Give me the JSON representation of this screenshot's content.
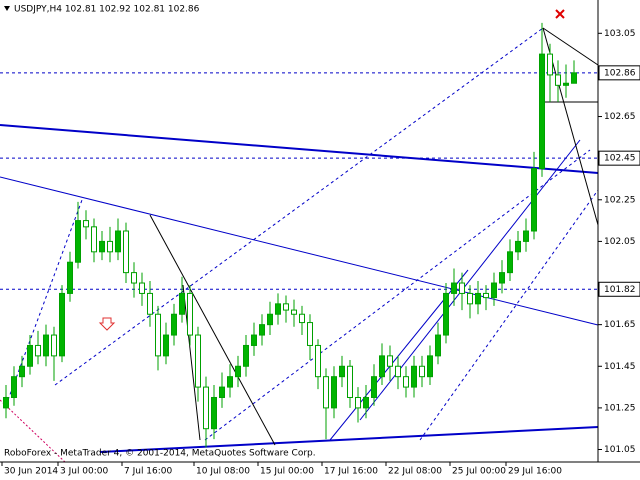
{
  "chart_data": {
    "type": "candlestick",
    "header": "USDJPY,H4  102.81 102.92 102.81 102.86",
    "footer": "RoboForex - MetaTrader 4, © 2001-2014, MetaQuotes Software Corp.",
    "categories": [
      "30 Jun 2014",
      null,
      null,
      null,
      null,
      null,
      null,
      "3 Jul 00:00",
      null,
      null,
      null,
      null,
      null,
      null,
      null,
      "7 Jul 16:00",
      null,
      null,
      null,
      null,
      null,
      null,
      null,
      null,
      "10 Jul 08:00",
      null,
      null,
      null,
      null,
      null,
      null,
      null,
      "15 Jul 00:00",
      null,
      null,
      null,
      null,
      null,
      null,
      null,
      "17 Jul 16:00",
      null,
      null,
      null,
      null,
      null,
      null,
      null,
      "22 Jul 08:00",
      null,
      null,
      null,
      null,
      null,
      null,
      null,
      "25 Jul 00:00",
      null,
      null,
      null,
      null,
      null,
      null,
      "29 Jul 16:00",
      null,
      null,
      null,
      null,
      null,
      null,
      null,
      null
    ],
    "open": [
      101.25,
      101.3,
      101.4,
      101.45,
      101.55,
      101.5,
      101.6,
      101.5,
      101.8,
      101.95,
      102.15,
      102.12,
      102.0,
      102.05,
      102.0,
      102.1,
      101.9,
      101.85,
      101.8,
      101.7,
      101.5,
      101.6,
      101.7,
      101.8,
      101.6,
      101.35,
      101.15,
      101.3,
      101.35,
      101.4,
      101.45,
      101.55,
      101.6,
      101.65,
      101.7,
      101.75,
      101.72,
      101.7,
      101.66,
      101.55,
      101.4,
      101.25,
      101.4,
      101.45,
      101.3,
      101.25,
      101.3,
      101.4,
      101.5,
      101.45,
      101.4,
      101.35,
      101.45,
      101.4,
      101.5,
      101.6,
      101.8,
      101.85,
      101.8,
      101.75,
      101.8,
      101.78,
      101.85,
      101.9,
      102.0,
      102.05,
      102.1,
      102.4,
      102.95,
      102.85,
      102.8,
      102.81
    ],
    "high": [
      101.36,
      101.45,
      101.5,
      101.6,
      101.62,
      101.65,
      101.64,
      101.84,
      102.0,
      102.24,
      102.2,
      102.16,
      102.1,
      102.12,
      102.16,
      102.14,
      101.95,
      101.9,
      101.86,
      101.74,
      101.66,
      101.75,
      101.88,
      101.84,
      101.64,
      101.4,
      101.36,
      101.42,
      101.46,
      101.5,
      101.6,
      101.66,
      101.7,
      101.76,
      101.8,
      101.79,
      101.77,
      101.74,
      101.7,
      101.58,
      101.44,
      101.45,
      101.5,
      101.48,
      101.35,
      101.36,
      101.46,
      101.56,
      101.55,
      101.5,
      101.45,
      101.5,
      101.5,
      101.55,
      101.66,
      101.85,
      101.92,
      101.9,
      101.84,
      101.86,
      101.84,
      101.9,
      101.96,
      102.06,
      102.1,
      102.16,
      102.48,
      103.1,
      103.0,
      102.92,
      102.9,
      102.92
    ],
    "low": [
      101.2,
      101.26,
      101.35,
      101.41,
      101.46,
      101.45,
      101.38,
      101.47,
      101.76,
      101.92,
      102.06,
      101.95,
      101.96,
      101.95,
      101.96,
      101.85,
      101.78,
      101.74,
      101.64,
      101.43,
      101.46,
      101.55,
      101.66,
      101.55,
      101.28,
      101.06,
      101.1,
      101.25,
      101.3,
      101.35,
      101.4,
      101.5,
      101.55,
      101.6,
      101.65,
      101.66,
      101.64,
      101.6,
      101.48,
      101.34,
      101.1,
      101.2,
      101.35,
      101.25,
      101.18,
      101.2,
      101.26,
      101.36,
      101.38,
      101.34,
      101.3,
      101.3,
      101.35,
      101.36,
      101.46,
      101.56,
      101.74,
      101.72,
      101.68,
      101.7,
      101.72,
      101.74,
      101.8,
      101.86,
      101.96,
      102.0,
      102.06,
      102.36,
      102.72,
      102.72,
      102.74,
      102.81
    ],
    "close": [
      101.3,
      101.4,
      101.45,
      101.55,
      101.5,
      101.6,
      101.5,
      101.8,
      101.95,
      102.15,
      102.12,
      102.0,
      102.05,
      102.0,
      102.1,
      101.9,
      101.85,
      101.8,
      101.7,
      101.5,
      101.6,
      101.7,
      101.8,
      101.6,
      101.35,
      101.15,
      101.3,
      101.35,
      101.4,
      101.45,
      101.55,
      101.6,
      101.65,
      101.7,
      101.75,
      101.72,
      101.7,
      101.66,
      101.55,
      101.4,
      101.25,
      101.4,
      101.45,
      101.3,
      101.25,
      101.3,
      101.4,
      101.5,
      101.45,
      101.4,
      101.35,
      101.45,
      101.4,
      101.5,
      101.6,
      101.8,
      101.85,
      101.8,
      101.75,
      101.8,
      101.78,
      101.85,
      101.9,
      102.0,
      102.05,
      102.1,
      102.4,
      102.95,
      102.85,
      102.8,
      102.81,
      102.86
    ],
    "up_color": "#00b400",
    "down_color": "#ffffff",
    "wick_color": "#00a000",
    "ylim": [
      100.99,
      103.21
    ],
    "yticks": [
      103.05,
      102.65,
      102.25,
      102.05,
      101.65,
      101.45,
      101.25,
      101.05
    ],
    "levels": [
      102.86,
      102.45,
      101.82
    ]
  }
}
